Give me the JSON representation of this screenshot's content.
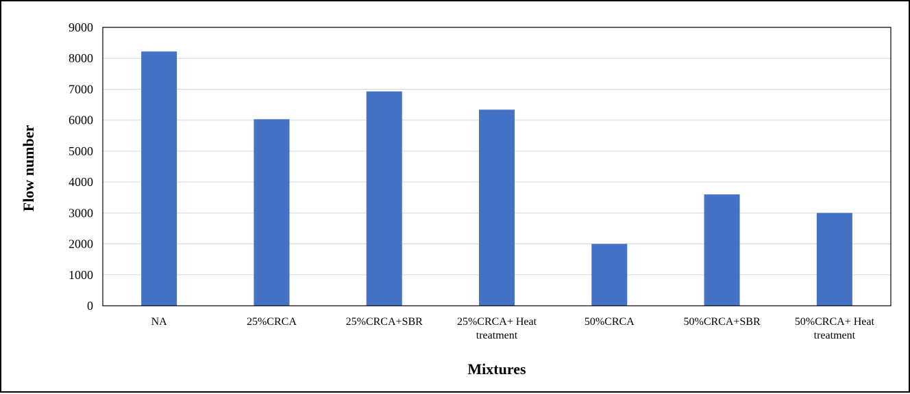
{
  "chart_data": {
    "type": "bar",
    "categories": [
      [
        "NA"
      ],
      [
        "25%CRCA"
      ],
      [
        "25%CRCA+SBR"
      ],
      [
        "25%CRCA+ Heat",
        "treatment"
      ],
      [
        "50%CRCA"
      ],
      [
        "50%CRCA+SBR"
      ],
      [
        "50%CRCA+ Heat",
        "treatment"
      ]
    ],
    "values": [
      8220,
      6030,
      6930,
      6340,
      2000,
      3600,
      3000
    ],
    "xlabel": "Mixtures",
    "ylabel": "Flow number",
    "ylim": [
      0,
      9000
    ],
    "yticks": [
      0,
      1000,
      2000,
      3000,
      4000,
      5000,
      6000,
      7000,
      8000,
      9000
    ],
    "grid": true,
    "legend": "none",
    "colors": {
      "bar": "#4472C4",
      "grid": "#D9D9D9",
      "axis": "#000000"
    }
  }
}
